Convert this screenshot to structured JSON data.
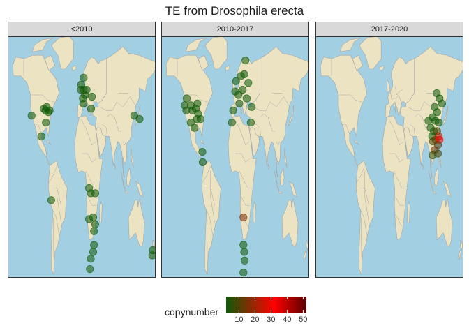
{
  "title": "TE from Drosophila erecta",
  "panels": [
    {
      "label": "<2010"
    },
    {
      "label": "2010-2017"
    },
    {
      "label": "2017-2020"
    }
  ],
  "legend": {
    "title": "copynumber",
    "ticks": [
      10,
      20,
      30,
      40,
      50
    ],
    "range": [
      2,
      52
    ],
    "colors": [
      "#0e5a06",
      "#ff0000",
      "#5a0000"
    ]
  },
  "colors": {
    "ocean": "#a2cfe1",
    "land": "#ece3c3",
    "border": "#a6a6a6"
  },
  "chart_data": {
    "type": "scatter",
    "points": [
      {
        "p": 0,
        "lon": -92,
        "lat": 41,
        "cn": 2
      },
      {
        "p": 0,
        "lon": -88,
        "lat": 40,
        "cn": 2
      },
      {
        "p": 0,
        "lon": -85,
        "lat": 42,
        "cn": 2
      },
      {
        "p": 0,
        "lon": -81,
        "lat": 39,
        "cn": 2
      },
      {
        "p": 0,
        "lon": -78,
        "lat": 40,
        "cn": 2
      },
      {
        "p": 0,
        "lon": -122,
        "lat": 37,
        "cn": 2
      },
      {
        "p": 0,
        "lon": -98,
        "lat": 25,
        "cn": 2
      },
      {
        "p": 0,
        "lon": -87,
        "lat": 33,
        "cn": 2
      },
      {
        "p": 0,
        "lon": -74,
        "lat": -12,
        "cn": 2
      },
      {
        "p": 0,
        "lon": -2,
        "lat": 52,
        "cn": 2
      },
      {
        "p": 0,
        "lon": 5,
        "lat": 52,
        "cn": 2
      },
      {
        "p": 0,
        "lon": 3,
        "lat": 47,
        "cn": 2
      },
      {
        "p": 0,
        "lon": 8,
        "lat": 49,
        "cn": 2
      },
      {
        "p": 0,
        "lon": 4,
        "lat": 44,
        "cn": 2
      },
      {
        "p": 0,
        "lon": 12,
        "lat": 52,
        "cn": 2
      },
      {
        "p": 0,
        "lon": -1,
        "lat": 55,
        "cn": 2
      },
      {
        "p": 0,
        "lon": 5,
        "lat": 59,
        "cn": 2
      },
      {
        "p": 0,
        "lon": 25,
        "lat": 48,
        "cn": 2
      },
      {
        "p": 0,
        "lon": 23,
        "lat": 41,
        "cn": 2
      },
      {
        "p": 0,
        "lon": 128,
        "lat": 37,
        "cn": 2
      },
      {
        "p": 0,
        "lon": 141,
        "lat": 35,
        "cn": 2
      },
      {
        "p": 0,
        "lon": 18,
        "lat": -5,
        "cn": 2
      },
      {
        "p": 0,
        "lon": 22,
        "lat": -8,
        "cn": 2
      },
      {
        "p": 0,
        "lon": 33,
        "lat": -8,
        "cn": 2
      },
      {
        "p": 0,
        "lon": 28,
        "lat": -22,
        "cn": 2
      },
      {
        "p": 0,
        "lon": 18,
        "lat": -23,
        "cn": 2
      },
      {
        "p": 0,
        "lon": 33,
        "lat": -26,
        "cn": 2
      },
      {
        "p": 0,
        "lon": 30,
        "lat": -30,
        "cn": 2
      },
      {
        "p": 0,
        "lon": 30,
        "lat": -38,
        "cn": 2
      },
      {
        "p": 0,
        "lon": 28,
        "lat": -42,
        "cn": 2
      },
      {
        "p": 0,
        "lon": 22,
        "lat": -46,
        "cn": 2
      },
      {
        "p": 0,
        "lon": 20,
        "lat": -52,
        "cn": 2
      },
      {
        "p": 0,
        "lon": 173,
        "lat": -41,
        "cn": 2
      },
      {
        "p": 0,
        "lon": 172,
        "lat": -44,
        "cn": 2
      },
      {
        "p": 1,
        "lon": -123,
        "lat": 43,
        "cn": 2
      },
      {
        "p": 1,
        "lon": -119,
        "lat": 40,
        "cn": 2
      },
      {
        "p": 1,
        "lon": -118,
        "lat": 47,
        "cn": 2
      },
      {
        "p": 1,
        "lon": -108,
        "lat": 43,
        "cn": 2
      },
      {
        "p": 1,
        "lon": -104,
        "lat": 40,
        "cn": 2
      },
      {
        "p": 1,
        "lon": -96,
        "lat": 41,
        "cn": 2
      },
      {
        "p": 1,
        "lon": -92,
        "lat": 44,
        "cn": 2
      },
      {
        "p": 1,
        "lon": -90,
        "lat": 38,
        "cn": 2
      },
      {
        "p": 1,
        "lon": -93,
        "lat": 35,
        "cn": 2
      },
      {
        "p": 1,
        "lon": -99,
        "lat": 30,
        "cn": 2
      },
      {
        "p": 1,
        "lon": -108,
        "lat": 33,
        "cn": 2
      },
      {
        "p": 1,
        "lon": -84,
        "lat": 35,
        "cn": 2
      },
      {
        "p": 1,
        "lon": -80,
        "lat": 16,
        "cn": 2
      },
      {
        "p": 1,
        "lon": -79,
        "lat": 10,
        "cn": 2
      },
      {
        "p": 1,
        "lon": 0,
        "lat": 51,
        "cn": 2
      },
      {
        "p": 1,
        "lon": 8,
        "lat": 49,
        "cn": 2
      },
      {
        "p": 1,
        "lon": 18,
        "lat": 52,
        "cn": 2
      },
      {
        "p": 1,
        "lon": 28,
        "lat": 47,
        "cn": 2
      },
      {
        "p": 1,
        "lon": 2,
        "lat": 57,
        "cn": 2
      },
      {
        "p": 1,
        "lon": 14,
        "lat": 60,
        "cn": 2
      },
      {
        "p": 1,
        "lon": 22,
        "lat": 61,
        "cn": 2
      },
      {
        "p": 1,
        "lon": 25,
        "lat": 69,
        "cn": 2
      },
      {
        "p": 1,
        "lon": 32,
        "lat": 56,
        "cn": 2
      },
      {
        "p": 1,
        "lon": -5,
        "lat": 40,
        "cn": 2
      },
      {
        "p": 1,
        "lon": 10,
        "lat": 44,
        "cn": 2
      },
      {
        "p": 1,
        "lon": 40,
        "lat": 42,
        "cn": 2
      },
      {
        "p": 1,
        "lon": 38,
        "lat": 33,
        "cn": 2
      },
      {
        "p": 1,
        "lon": -8,
        "lat": 33,
        "cn": 2
      },
      {
        "p": 1,
        "lon": 20,
        "lat": -22,
        "cn": 16
      },
      {
        "p": 1,
        "lon": 20,
        "lat": -38,
        "cn": 2
      },
      {
        "p": 1,
        "lon": 22,
        "lat": -42,
        "cn": 2
      },
      {
        "p": 1,
        "lon": 23,
        "lat": -47,
        "cn": 2
      },
      {
        "p": 1,
        "lon": 20,
        "lat": -54,
        "cn": 2
      },
      {
        "p": 2,
        "lon": 115,
        "lat": 50,
        "cn": 2
      },
      {
        "p": 2,
        "lon": 122,
        "lat": 47,
        "cn": 2
      },
      {
        "p": 2,
        "lon": 128,
        "lat": 44,
        "cn": 2
      },
      {
        "p": 2,
        "lon": 110,
        "lat": 42,
        "cn": 2
      },
      {
        "p": 2,
        "lon": 116,
        "lat": 39,
        "cn": 2
      },
      {
        "p": 2,
        "lon": 105,
        "lat": 36,
        "cn": 2
      },
      {
        "p": 2,
        "lon": 95,
        "lat": 34,
        "cn": 2
      },
      {
        "p": 2,
        "lon": 112,
        "lat": 34,
        "cn": 2
      },
      {
        "p": 2,
        "lon": 120,
        "lat": 33,
        "cn": 2
      },
      {
        "p": 2,
        "lon": 100,
        "lat": 30,
        "cn": 2
      },
      {
        "p": 2,
        "lon": 108,
        "lat": 28,
        "cn": 2
      },
      {
        "p": 2,
        "lon": 116,
        "lat": 28,
        "cn": 10
      },
      {
        "p": 2,
        "lon": 104,
        "lat": 25,
        "cn": 2
      },
      {
        "p": 2,
        "lon": 120,
        "lat": 25,
        "cn": 22
      },
      {
        "p": 2,
        "lon": 112,
        "lat": 23,
        "cn": 18
      },
      {
        "p": 2,
        "lon": 106,
        "lat": 22,
        "cn": 8
      },
      {
        "p": 2,
        "lon": 122,
        "lat": 23,
        "cn": 32
      },
      {
        "p": 2,
        "lon": 118,
        "lat": 20,
        "cn": 12
      },
      {
        "p": 2,
        "lon": 110,
        "lat": 17,
        "cn": 14
      },
      {
        "p": 2,
        "lon": 105,
        "lat": 14,
        "cn": 6
      },
      {
        "p": 2,
        "lon": 118,
        "lat": 15,
        "cn": 9
      }
    ]
  }
}
